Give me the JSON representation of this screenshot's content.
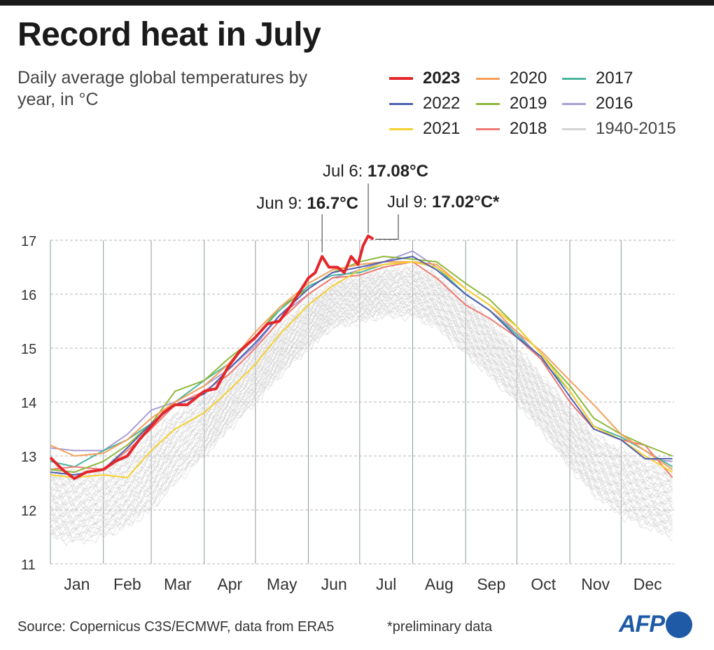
{
  "title": "Record heat in July",
  "subtitle": "Daily average global temperatures by year, in °C",
  "source": "Source: Copernicus C3S/ECMWF, data from ERA5",
  "note": "*preliminary data",
  "logo": "AFP",
  "chart_data": {
    "type": "line",
    "title": "Record heat in July",
    "xlabel": "",
    "ylabel": "",
    "ylim": [
      11,
      17
    ],
    "yticks": [
      "11",
      "12",
      "13",
      "14",
      "15",
      "16",
      "17"
    ],
    "xticks": [
      "Jan",
      "Feb",
      "Mar",
      "Apr",
      "May",
      "Jun",
      "Jul",
      "Aug",
      "Sep",
      "Oct",
      "Nov",
      "Dec"
    ],
    "grid": "horizontal dashed, vertical month separators",
    "legend_placement": "top-right",
    "x": [
      "Jan 1",
      "Jan 15",
      "Feb 1",
      "Feb 15",
      "Mar 1",
      "Mar 15",
      "Apr 1",
      "Apr 15",
      "May 1",
      "May 15",
      "Jun 1",
      "Jun 15",
      "Jul 1",
      "Jul 15",
      "Aug 1",
      "Aug 15",
      "Sep 1",
      "Sep 15",
      "Oct 1",
      "Oct 15",
      "Nov 1",
      "Nov 15",
      "Dec 1",
      "Dec 15",
      "Dec 31"
    ],
    "series": [
      {
        "name": "1940-2015",
        "color": "#d4d4d4",
        "range_low": [
          11.5,
          11.4,
          11.5,
          11.7,
          12.0,
          12.5,
          13.0,
          13.5,
          14.0,
          14.5,
          15.0,
          15.4,
          15.5,
          15.6,
          15.6,
          15.4,
          14.9,
          14.5,
          14.0,
          13.5,
          12.8,
          12.3,
          11.9,
          11.7,
          11.5
        ],
        "range_high": [
          12.8,
          12.7,
          12.8,
          13.0,
          13.4,
          13.8,
          14.1,
          14.5,
          15.0,
          15.4,
          15.9,
          16.2,
          16.35,
          16.45,
          16.5,
          16.35,
          15.9,
          15.5,
          15.0,
          14.5,
          13.9,
          13.4,
          13.1,
          12.9,
          12.8
        ]
      },
      {
        "name": "2016",
        "color": "#a89ed6",
        "values": [
          13.15,
          13.1,
          13.1,
          13.4,
          13.85,
          14.0,
          14.3,
          14.6,
          15.05,
          15.6,
          16.0,
          16.3,
          16.45,
          16.6,
          16.8,
          16.5,
          16.0,
          15.7,
          15.3,
          14.8,
          14.0,
          13.5,
          13.3,
          12.95,
          12.9
        ]
      },
      {
        "name": "2017",
        "color": "#4cb6a0",
        "values": [
          12.9,
          12.8,
          13.1,
          13.3,
          13.6,
          14.0,
          14.4,
          14.7,
          15.2,
          15.7,
          16.15,
          16.35,
          16.4,
          16.55,
          16.6,
          16.5,
          16.0,
          15.7,
          15.25,
          14.8,
          14.2,
          13.55,
          13.35,
          13.1,
          12.8
        ]
      },
      {
        "name": "2018",
        "color": "#f07a73",
        "values": [
          12.75,
          12.8,
          12.75,
          13.1,
          13.5,
          13.95,
          14.2,
          14.5,
          15.0,
          15.5,
          16.0,
          16.3,
          16.35,
          16.5,
          16.6,
          16.3,
          15.8,
          15.55,
          15.2,
          14.8,
          14.0,
          13.5,
          13.3,
          13.2,
          12.6
        ]
      },
      {
        "name": "2019",
        "color": "#8fb83a",
        "values": [
          12.75,
          12.7,
          12.9,
          13.2,
          13.6,
          14.2,
          14.4,
          14.8,
          15.2,
          15.75,
          16.1,
          16.4,
          16.6,
          16.7,
          16.65,
          16.6,
          16.2,
          15.9,
          15.4,
          14.9,
          14.3,
          13.7,
          13.4,
          13.2,
          13.0
        ]
      },
      {
        "name": "2020",
        "color": "#f5a05a",
        "values": [
          13.2,
          13.0,
          13.05,
          13.3,
          13.7,
          14.0,
          14.3,
          14.7,
          15.3,
          15.75,
          16.2,
          16.45,
          16.55,
          16.6,
          16.6,
          16.55,
          16.1,
          15.8,
          15.3,
          14.95,
          14.4,
          13.95,
          13.4,
          13.1,
          12.75
        ]
      },
      {
        "name": "2021",
        "color": "#f6d02f",
        "values": [
          12.65,
          12.6,
          12.65,
          12.6,
          13.1,
          13.5,
          13.8,
          14.2,
          14.7,
          15.25,
          15.8,
          16.15,
          16.45,
          16.55,
          16.6,
          16.5,
          16.1,
          15.8,
          15.4,
          14.9,
          14.2,
          13.55,
          13.3,
          13.0,
          12.7
        ]
      },
      {
        "name": "2022",
        "color": "#5060b0",
        "values": [
          12.7,
          12.65,
          12.75,
          13.15,
          13.6,
          13.95,
          14.15,
          14.6,
          15.1,
          15.6,
          16.1,
          16.4,
          16.5,
          16.6,
          16.7,
          16.45,
          16.0,
          15.7,
          15.2,
          14.85,
          14.1,
          13.5,
          13.3,
          12.95,
          12.95
        ]
      },
      {
        "name": "2023",
        "color": "#e3262b",
        "x": [
          "Jan 1",
          "Jan 8",
          "Jan 15",
          "Jan 22",
          "Feb 1",
          "Feb 8",
          "Feb 15",
          "Feb 22",
          "Mar 1",
          "Mar 8",
          "Mar 15",
          "Mar 22",
          "Apr 1",
          "Apr 8",
          "Apr 15",
          "Apr 22",
          "May 1",
          "May 8",
          "May 15",
          "May 22",
          "Jun 1",
          "Jun 5",
          "Jun 9",
          "Jun 13",
          "Jun 18",
          "Jun 22",
          "Jun 26",
          "Jun 30",
          "Jul 3",
          "Jul 6",
          "Jul 9"
        ],
        "values": [
          12.97,
          12.75,
          12.58,
          12.7,
          12.75,
          12.9,
          13.0,
          13.3,
          13.55,
          13.8,
          13.95,
          13.95,
          14.2,
          14.25,
          14.65,
          14.95,
          15.2,
          15.45,
          15.5,
          15.8,
          16.3,
          16.4,
          16.7,
          16.5,
          16.5,
          16.4,
          16.7,
          16.55,
          16.9,
          17.08,
          17.02
        ]
      }
    ],
    "legend": [
      "2023",
      "2020",
      "2017",
      "2022",
      "2019",
      "2016",
      "2021",
      "2018",
      "1940-2015"
    ],
    "annotations": [
      {
        "date": "Jun 9",
        "label": "Jun 9: ",
        "value": 16.7,
        "value_text": "16.7°C"
      },
      {
        "date": "Jul 6",
        "label": "Jul 6: ",
        "value": 17.08,
        "value_text": "17.08°C"
      },
      {
        "date": "Jul 9",
        "label": "Jul 9: ",
        "value": 17.02,
        "value_text": "17.02°C*"
      }
    ]
  }
}
